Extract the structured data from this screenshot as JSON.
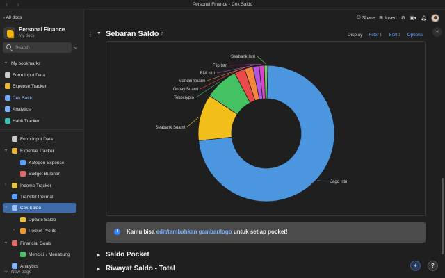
{
  "window": {
    "title": "Personal Finance · Cek Saldo"
  },
  "sidebar": {
    "all_docs": "All docs",
    "workspace": {
      "name": "Personal Finance",
      "subtitle": "My docs"
    },
    "search_placeholder": "Search",
    "bookmarks_label": "My bookmarks",
    "bookmarks": [
      {
        "label": "Form Input Data",
        "icon": "form-icon",
        "color": "#c9c9c9"
      },
      {
        "label": "Expense Tracker",
        "icon": "money-bag-icon",
        "color": "#e8b339"
      },
      {
        "label": "Cek Saldo",
        "icon": "card-icon",
        "color": "#6fa8ff"
      },
      {
        "label": "Analytics",
        "icon": "doc-icon",
        "color": "#7fb3ff"
      },
      {
        "label": "Habit Tracker",
        "icon": "calendar-icon",
        "color": "#39c3b5"
      }
    ],
    "pages": [
      {
        "label": "Form Input Data",
        "icon": "form-icon",
        "color": "#c9c9c9"
      },
      {
        "label": "Expense Tracker",
        "icon": "money-bag-icon",
        "color": "#e8b339"
      },
      {
        "label": "Kategori Expense",
        "icon": "phone-icon",
        "color": "#5aa2ff"
      },
      {
        "label": "Budget Bulanan",
        "icon": "calendar-icon",
        "color": "#e46a6a"
      },
      {
        "label": "Income Tracker",
        "icon": "income-icon",
        "color": "#e8c23a"
      },
      {
        "label": "Transfer Internal",
        "icon": "transfer-icon",
        "color": "#5aa2ff"
      },
      {
        "label": "Cek Saldo",
        "icon": "card-icon",
        "color": "#9cc0ff"
      },
      {
        "label": "Update Saldo",
        "icon": "refresh-icon",
        "color": "#e8c23a"
      },
      {
        "label": "Pocket Profile",
        "icon": "wallet-icon",
        "color": "#f29a2e"
      },
      {
        "label": "Financial Goals",
        "icon": "target-icon",
        "color": "#e46a6a"
      },
      {
        "label": "Mencicil / Menabung",
        "icon": "piggy-icon",
        "color": "#4fbf6a"
      },
      {
        "label": "Analytics",
        "icon": "doc-icon",
        "color": "#7fb3ff"
      }
    ],
    "new_page": "New page"
  },
  "toolbar": {
    "share": "Share",
    "insert": "Insert"
  },
  "section": {
    "title": "Sebaran Saldo",
    "count": "7",
    "display": "Display",
    "filter": "Filter",
    "filter_count": "8",
    "sort": "Sort",
    "sort_count": "1",
    "options": "Options"
  },
  "chart_data": {
    "type": "pie",
    "style": "donut",
    "slices": [
      {
        "label": "Jago Istri",
        "value": 73.0,
        "color": "#4c96e0"
      },
      {
        "label": "Seabank Suami",
        "value": 11.0,
        "color": "#f2be1a"
      },
      {
        "label": "Tokocrypto",
        "value": 8.0,
        "color": "#44c263"
      },
      {
        "label": "Gopay Suami",
        "value": 2.5,
        "color": "#ea4a4a"
      },
      {
        "label": "Mandiri Suami",
        "value": 2.0,
        "color": "#f3883a"
      },
      {
        "label": "BNI Istri",
        "value": 1.5,
        "color": "#b455e0"
      },
      {
        "label": "Flip Istri",
        "value": 1.2,
        "color": "#d946c4"
      },
      {
        "label": "Seabank Istri",
        "value": 0.8,
        "color": "#7ec86e"
      }
    ]
  },
  "callout": {
    "prefix": "Kamu bisa ",
    "link": "edit/tambahkan gambar/logo",
    "suffix": " untuk setiap pocket!"
  },
  "sections_below": [
    {
      "title": "Saldo Pocket"
    },
    {
      "title": "Riwayat Saldo - Total"
    }
  ]
}
